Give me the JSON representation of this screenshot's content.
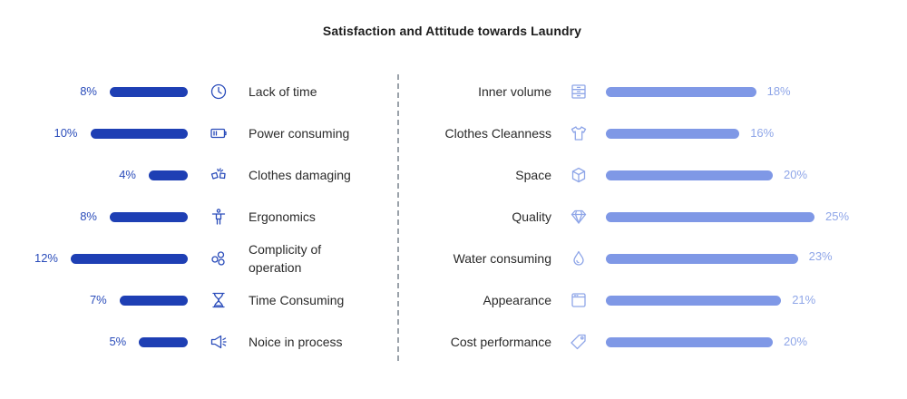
{
  "chart_data": [
    {
      "type": "bar",
      "title": "Satisfaction and Attitude towards Laundry",
      "categories": [
        "Lack of time",
        "Power consuming",
        "Clothes damaging",
        "Ergonomics",
        "Complicity of operation",
        "Time Consuming",
        "Noice in process"
      ],
      "values": [
        8,
        10,
        4,
        8,
        12,
        7,
        5
      ],
      "value_labels": [
        "8%",
        "10%",
        "4%",
        "8%",
        "12%",
        "7%",
        "5%"
      ],
      "orientation": "horizontal-leftward",
      "color": "#1e3fb4",
      "icons": [
        "clock-icon",
        "battery-icon",
        "torn-clothes-icon",
        "ergonomics-icon",
        "gears-icon",
        "hourglass-icon",
        "speaker-icon"
      ]
    },
    {
      "type": "bar",
      "categories": [
        "Inner volume",
        "Clothes Cleanness",
        "Space",
        "Quality",
        "Water consuming",
        "Appearance",
        "Cost performance"
      ],
      "values": [
        18,
        16,
        20,
        25,
        23,
        21,
        20
      ],
      "value_labels": [
        "18%",
        "16%",
        "20%",
        "25%",
        "23%",
        "21%",
        "20%"
      ],
      "orientation": "horizontal-rightward",
      "color": "#7f98e6",
      "icons": [
        "drawers-icon",
        "shirt-icon",
        "box-icon",
        "diamond-icon",
        "water-drop-icon",
        "window-icon",
        "price-tag-icon"
      ]
    }
  ],
  "colors": {
    "left_bar": "#1e3fb4",
    "right_bar": "#7f98e6",
    "left_label": "#2a4cba",
    "right_label": "#8fa6e8",
    "left_icon": "#2a4cba",
    "right_icon": "#8fa6e8",
    "divider": "#9aa1a9"
  }
}
